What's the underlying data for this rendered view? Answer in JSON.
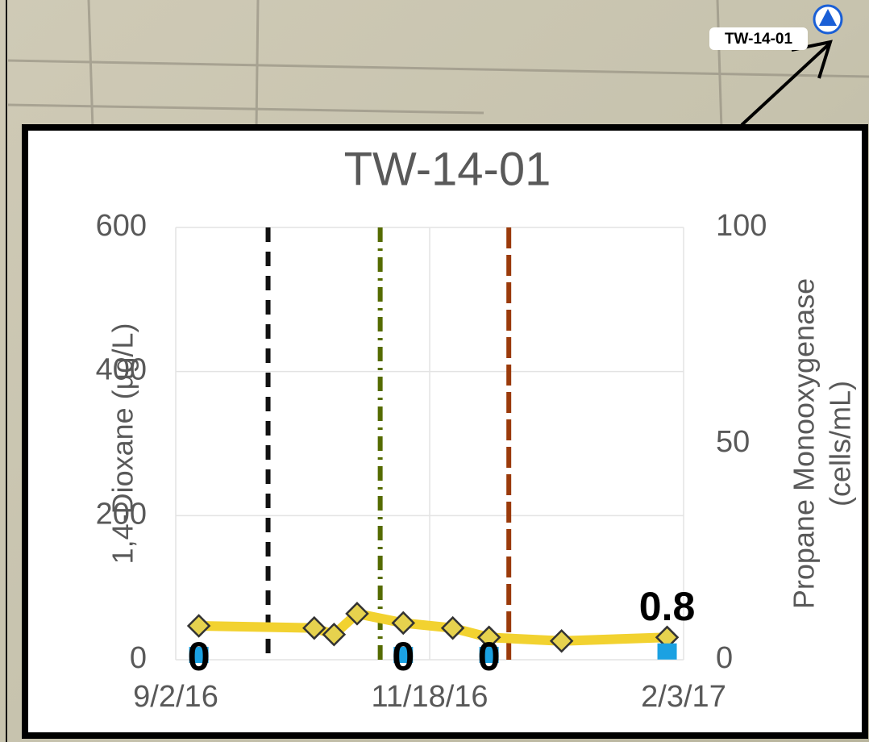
{
  "map_label": "TW-14-01",
  "chart_data": {
    "type": "line",
    "title": "TW-14-01",
    "y_label": "1,4-Dioxane (µg/L)",
    "y2_label": [
      "Propane Monooxygenase",
      "(cells/mL)"
    ],
    "xlim": [
      "2016-09-02",
      "2017-02-03"
    ],
    "xticks": [
      {
        "value": "2016-09-02",
        "label": "9/2/16"
      },
      {
        "value": "2016-11-18",
        "label": "11/18/16"
      },
      {
        "value": "2017-02-03",
        "label": "2/3/17"
      }
    ],
    "ylim": [
      0,
      600
    ],
    "yticks": [
      0,
      200,
      400,
      600
    ],
    "y2lim": [
      0,
      100
    ],
    "y2ticks": [
      0,
      50,
      100
    ],
    "grid": true,
    "series": [
      {
        "color": "#f2d230",
        "marker": "diamond",
        "marker_color": "#e6d24e",
        "x": [
          "2016-09-09",
          "2016-10-14",
          "2016-10-20",
          "2016-10-27",
          "2016-11-10",
          "2016-11-25",
          "2016-12-06",
          "2016-12-28",
          "2017-01-29"
        ],
        "values": [
          47,
          44,
          35,
          64,
          51,
          44,
          31,
          26,
          31
        ]
      },
      {
        "color": "#1ba1e2",
        "marker": "square",
        "axis": "y2",
        "data_labels": true,
        "x": [
          "2016-09-09",
          "2016-11-10",
          "2016-12-06",
          "2017-01-29"
        ],
        "values": [
          0,
          0,
          0,
          0.8
        ]
      }
    ],
    "events": [
      {
        "x": "2016-09-30",
        "color": "#111111",
        "dash": "18 12"
      },
      {
        "x": "2016-11-03",
        "color": "#556b00",
        "dash": "18 8 3 8"
      },
      {
        "x": "2016-12-12",
        "color": "#9a3a0a",
        "dash": "26 8"
      }
    ]
  }
}
